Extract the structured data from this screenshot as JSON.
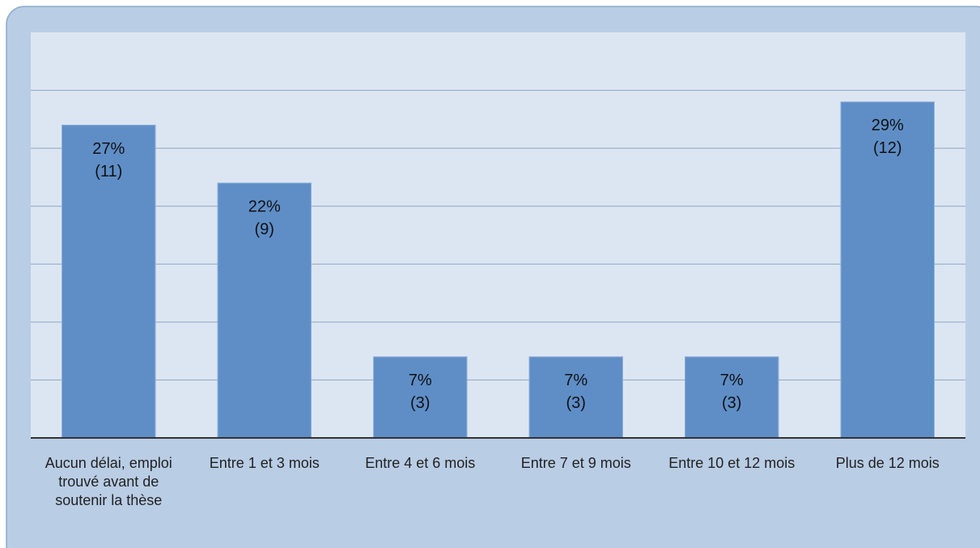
{
  "chart_data": {
    "type": "bar",
    "categories": [
      "Aucun délai, emploi trouvé avant de soutenir la thèse",
      "Entre 1 et 3 mois",
      "Entre 4 et 6 mois",
      "Entre 7 et 9 mois",
      "Entre 10 et 12 mois",
      "Plus de 12 mois"
    ],
    "values": [
      27,
      22,
      7,
      7,
      7,
      29
    ],
    "value_labels": [
      "27%",
      "22%",
      "7%",
      "7%",
      "7%",
      "29%"
    ],
    "count_labels": [
      "(11)",
      "(9)",
      "(3)",
      "(3)",
      "(3)",
      "(12)"
    ],
    "color": "#5f8ec7",
    "ylim": [
      0,
      35
    ],
    "yticks": [
      5,
      10,
      15,
      20,
      25,
      30
    ],
    "grid": true
  }
}
